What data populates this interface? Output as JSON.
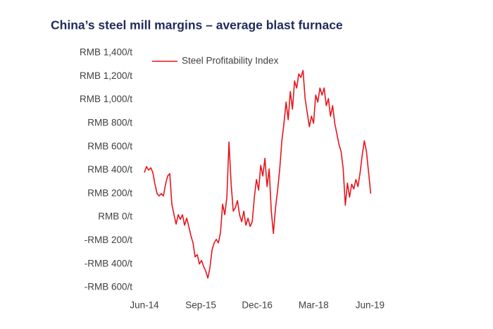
{
  "chart_data": {
    "type": "line",
    "title": "China’s steel mill margins – average blast furnace",
    "xlim": [
      0,
      60.5
    ],
    "xticks": [
      {
        "value": 0,
        "label": "Jun-14"
      },
      {
        "value": 15,
        "label": "Sep-15"
      },
      {
        "value": 30,
        "label": "Dec-16"
      },
      {
        "value": 45,
        "label": "Mar-18"
      },
      {
        "value": 60,
        "label": "Jun-19"
      }
    ],
    "ylim": [
      -600,
      1400
    ],
    "yticks": [
      {
        "value": -600,
        "label": "-RMB 600/t"
      },
      {
        "value": -400,
        "label": "-RMB 400/t"
      },
      {
        "value": -200,
        "label": "-RMB 200/t"
      },
      {
        "value": 0,
        "label": "RMB 0/t"
      },
      {
        "value": 200,
        "label": "RMB 200/t"
      },
      {
        "value": 400,
        "label": "RMB 400/t"
      },
      {
        "value": 600,
        "label": "RMB 600/t"
      },
      {
        "value": 800,
        "label": "RMB 800/t"
      },
      {
        "value": 1000,
        "label": "RMB 1,000/t"
      },
      {
        "value": 1200,
        "label": "RMB 1,200/t"
      },
      {
        "value": 1400,
        "label": "RMB 1,400/t"
      }
    ],
    "grid": false,
    "legend": "upper left",
    "x": [
      0,
      0.56,
      1.13,
      1.69,
      2.25,
      2.81,
      3.38,
      3.94,
      4.5,
      5.06,
      5.63,
      6.19,
      6.75,
      7.31,
      7.88,
      8.44,
      9,
      9.56,
      10.13,
      10.69,
      11.25,
      11.81,
      12.38,
      12.94,
      13.5,
      14.06,
      14.63,
      15.19,
      15.75,
      16.31,
      16.88,
      17.44,
      18,
      18.56,
      19.13,
      19.69,
      20.25,
      20.81,
      21.38,
      21.94,
      22.5,
      23.06,
      23.63,
      24.19,
      24.75,
      25.31,
      25.88,
      26.44,
      27,
      27.56,
      28.13,
      28.69,
      29.25,
      29.81,
      30.38,
      30.94,
      31.5,
      32.06,
      32.63,
      33.19,
      33.75,
      34.31,
      34.88,
      35.44,
      36,
      36.56,
      37.13,
      37.69,
      38.25,
      38.81,
      39.38,
      39.94,
      40.5,
      41.06,
      41.63,
      42.19,
      42.75,
      43.31,
      43.88,
      44.44,
      45,
      45.56,
      46.13,
      46.69,
      47.25,
      47.81,
      48.38,
      48.94,
      49.5,
      50.06,
      50.63,
      51.19,
      51.75,
      52.31,
      52.88,
      53.44,
      54,
      54.56,
      55.13,
      55.69,
      56.25,
      56.81,
      57.38,
      57.94,
      58.5,
      59.06,
      59.63,
      60.19
    ],
    "series": [
      {
        "name": "Steel Profitability Index",
        "color": "#e8141b",
        "values": [
          380,
          430,
          400,
          420,
          380,
          280,
          200,
          180,
          200,
          180,
          280,
          350,
          370,
          110,
          20,
          -60,
          20,
          -20,
          20,
          -70,
          -10,
          -80,
          -160,
          -220,
          -340,
          -320,
          -400,
          -370,
          -420,
          -460,
          -520,
          -430,
          -280,
          -220,
          -190,
          -220,
          -130,
          110,
          20,
          170,
          640,
          290,
          50,
          80,
          140,
          20,
          -40,
          50,
          -70,
          -10,
          -80,
          -40,
          170,
          320,
          230,
          440,
          350,
          500,
          260,
          410,
          50,
          -140,
          80,
          230,
          410,
          650,
          800,
          980,
          830,
          1070,
          920,
          1160,
          1100,
          1220,
          1190,
          1250,
          1010,
          890,
          770,
          860,
          800,
          1040,
          980,
          1100,
          1040,
          1100,
          950,
          1010,
          860,
          950,
          800,
          710,
          620,
          560,
          410,
          100,
          290,
          170,
          280,
          240,
          320,
          260,
          380,
          530,
          650,
          560,
          380,
          200
        ]
      }
    ]
  }
}
